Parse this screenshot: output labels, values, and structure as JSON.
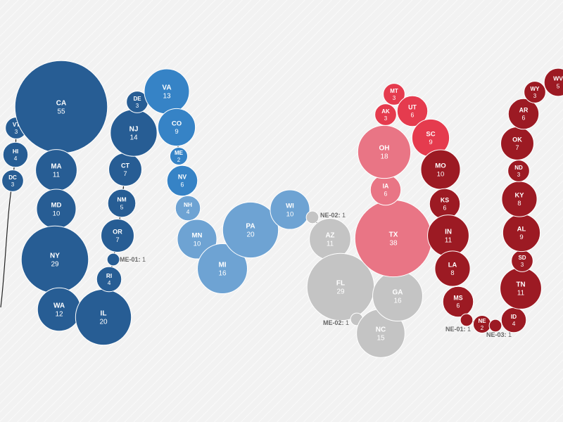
{
  "colors": {
    "safe_dem": "#275d94",
    "lean_dem": "#3683c6",
    "likely_dem": "#6ea3d3",
    "tossup": "#c4c4c4",
    "likely_rep": "#e97585",
    "lean_rep": "#e53b4e",
    "safe_rep": "#9c1a23",
    "tossup_label": "#666666",
    "line": "#222222"
  },
  "chart_data": {
    "type": "bubble-chain",
    "value_label": "electoral votes",
    "states": [
      {
        "abbr": "DC",
        "votes": 3,
        "group": "safe_dem"
      },
      {
        "abbr": "HI",
        "votes": 4,
        "group": "safe_dem"
      },
      {
        "abbr": "VT",
        "votes": 3,
        "group": "safe_dem"
      },
      {
        "abbr": "CA",
        "votes": 55,
        "group": "safe_dem"
      },
      {
        "abbr": "MA",
        "votes": 11,
        "group": "safe_dem"
      },
      {
        "abbr": "MD",
        "votes": 10,
        "group": "safe_dem"
      },
      {
        "abbr": "NY",
        "votes": 29,
        "group": "safe_dem"
      },
      {
        "abbr": "WA",
        "votes": 12,
        "group": "safe_dem"
      },
      {
        "abbr": "IL",
        "votes": 20,
        "group": "safe_dem"
      },
      {
        "abbr": "RI",
        "votes": 4,
        "group": "safe_dem"
      },
      {
        "abbr": "ME-01",
        "votes": 1,
        "group": "safe_dem",
        "outside": true
      },
      {
        "abbr": "OR",
        "votes": 7,
        "group": "safe_dem"
      },
      {
        "abbr": "NM",
        "votes": 5,
        "group": "safe_dem"
      },
      {
        "abbr": "CT",
        "votes": 7,
        "group": "safe_dem"
      },
      {
        "abbr": "NJ",
        "votes": 14,
        "group": "safe_dem"
      },
      {
        "abbr": "DE",
        "votes": 3,
        "group": "safe_dem"
      },
      {
        "abbr": "VA",
        "votes": 13,
        "group": "lean_dem"
      },
      {
        "abbr": "CO",
        "votes": 9,
        "group": "lean_dem"
      },
      {
        "abbr": "ME",
        "votes": 2,
        "group": "lean_dem"
      },
      {
        "abbr": "NV",
        "votes": 6,
        "group": "lean_dem"
      },
      {
        "abbr": "NH",
        "votes": 4,
        "group": "likely_dem"
      },
      {
        "abbr": "MN",
        "votes": 10,
        "group": "likely_dem"
      },
      {
        "abbr": "MI",
        "votes": 16,
        "group": "likely_dem"
      },
      {
        "abbr": "PA",
        "votes": 20,
        "group": "likely_dem"
      },
      {
        "abbr": "WI",
        "votes": 10,
        "group": "likely_dem"
      },
      {
        "abbr": "NE-02",
        "votes": 1,
        "group": "tossup",
        "outside": true
      },
      {
        "abbr": "AZ",
        "votes": 11,
        "group": "tossup"
      },
      {
        "abbr": "FL",
        "votes": 29,
        "group": "tossup"
      },
      {
        "abbr": "ME-02",
        "votes": 1,
        "group": "tossup",
        "outside": true
      },
      {
        "abbr": "NC",
        "votes": 15,
        "group": "tossup"
      },
      {
        "abbr": "GA",
        "votes": 16,
        "group": "tossup"
      },
      {
        "abbr": "TX",
        "votes": 38,
        "group": "likely_rep"
      },
      {
        "abbr": "IA",
        "votes": 6,
        "group": "likely_rep"
      },
      {
        "abbr": "OH",
        "votes": 18,
        "group": "likely_rep"
      },
      {
        "abbr": "AK",
        "votes": 3,
        "group": "lean_rep"
      },
      {
        "abbr": "MT",
        "votes": 3,
        "group": "lean_rep"
      },
      {
        "abbr": "UT",
        "votes": 6,
        "group": "lean_rep"
      },
      {
        "abbr": "SC",
        "votes": 9,
        "group": "lean_rep"
      },
      {
        "abbr": "MO",
        "votes": 10,
        "group": "safe_rep"
      },
      {
        "abbr": "KS",
        "votes": 6,
        "group": "safe_rep"
      },
      {
        "abbr": "IN",
        "votes": 11,
        "group": "safe_rep"
      },
      {
        "abbr": "LA",
        "votes": 8,
        "group": "safe_rep"
      },
      {
        "abbr": "MS",
        "votes": 6,
        "group": "safe_rep"
      },
      {
        "abbr": "NE-01",
        "votes": 1,
        "group": "safe_rep",
        "outside": true
      },
      {
        "abbr": "NE",
        "votes": 2,
        "group": "safe_rep"
      },
      {
        "abbr": "NE-03",
        "votes": 1,
        "group": "safe_rep",
        "outside": true
      },
      {
        "abbr": "ID",
        "votes": 4,
        "group": "safe_rep"
      },
      {
        "abbr": "TN",
        "votes": 11,
        "group": "safe_rep"
      },
      {
        "abbr": "SD",
        "votes": 3,
        "group": "safe_rep"
      },
      {
        "abbr": "AL",
        "votes": 9,
        "group": "safe_rep"
      },
      {
        "abbr": "KY",
        "votes": 8,
        "group": "safe_rep"
      },
      {
        "abbr": "ND",
        "votes": 3,
        "group": "safe_rep"
      },
      {
        "abbr": "OK",
        "votes": 7,
        "group": "safe_rep"
      },
      {
        "abbr": "AR",
        "votes": 6,
        "group": "safe_rep"
      },
      {
        "abbr": "WY",
        "votes": 3,
        "group": "safe_rep"
      },
      {
        "abbr": "WV",
        "votes": 5,
        "group": "safe_rep"
      }
    ]
  }
}
